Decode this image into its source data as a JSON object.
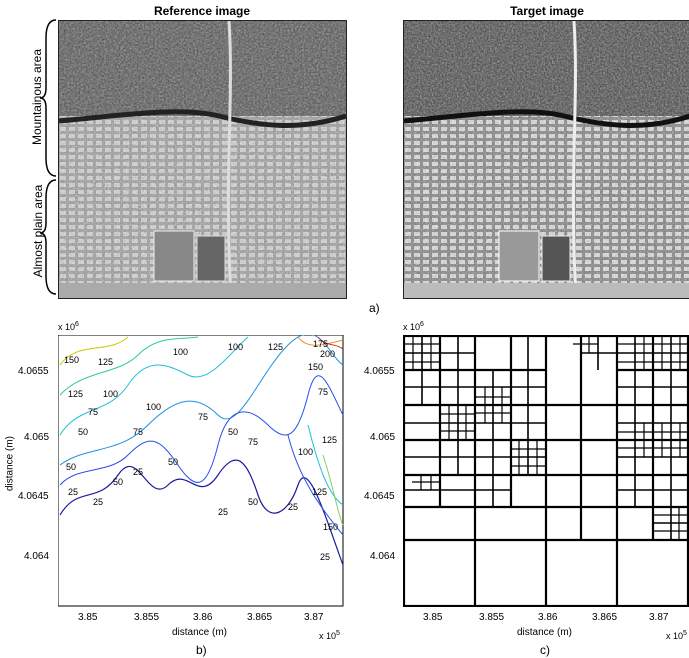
{
  "figure": {
    "panel_a": {
      "reference_title": "Reference image",
      "target_title": "Target image",
      "side_label_top": "Mountainous area",
      "side_label_bottom": "Almost plain area",
      "caption": "a)"
    },
    "panel_b": {
      "caption": "b)",
      "xlabel": "distance (m)",
      "ylabel": "distance (m)",
      "y_exponent": "x 10",
      "y_exponent_power": "6",
      "x_exponent": "x 10",
      "x_exponent_power": "5",
      "x_ticks": [
        "3.85",
        "3.855",
        "3.86",
        "3.865",
        "3.87"
      ],
      "y_ticks": [
        "4.0655",
        "4.065",
        "4.0645",
        "4.064"
      ],
      "contour_labels": [
        "150",
        "125",
        "100",
        "100",
        "125",
        "175",
        "200",
        "150",
        "125",
        "100",
        "75",
        "100",
        "75",
        "50",
        "75",
        "50",
        "75",
        "50",
        "25",
        "50",
        "25",
        "25",
        "50",
        "25",
        "50",
        "25",
        "75",
        "100",
        "125",
        "125",
        "150",
        "25"
      ]
    },
    "panel_c": {
      "caption": "c)",
      "xlabel": "distance (m)",
      "y_exponent": "x 10",
      "y_exponent_power": "6",
      "x_exponent": "x 10",
      "x_exponent_power": "5",
      "x_ticks": [
        "3.85",
        "3.855",
        "3.86",
        "3.865",
        "3.87"
      ],
      "y_ticks": [
        "4.0655",
        "4.065",
        "4.0645",
        "4.064"
      ]
    }
  }
}
